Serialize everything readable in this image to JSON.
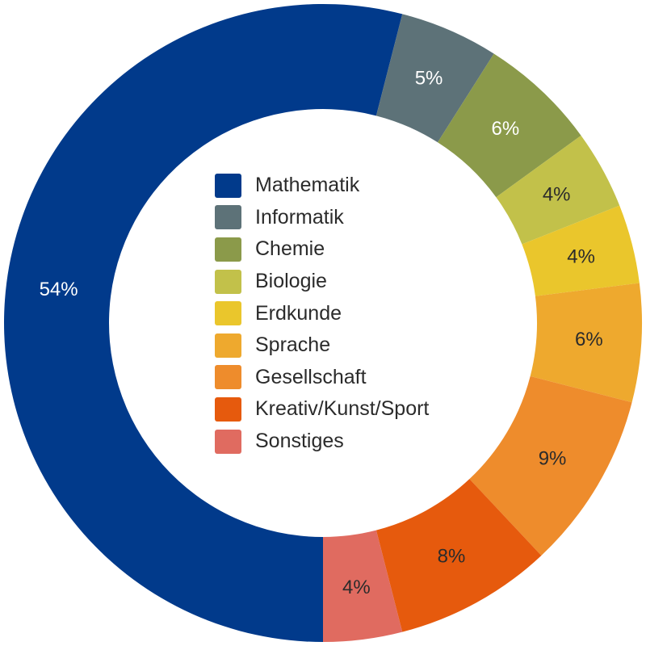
{
  "chart_data": {
    "type": "pie",
    "variant": "donut",
    "title": "",
    "legend_position": "center",
    "categories": [
      "Mathematik",
      "Informatik",
      "Chemie",
      "Biologie",
      "Erdkunde",
      "Sprache",
      "Gesellschaft",
      "Kreativ/Kunst/Sport",
      "Sonstiges"
    ],
    "values": [
      54,
      5,
      6,
      4,
      4,
      6,
      9,
      8,
      4
    ],
    "labels": [
      "54%",
      "5%",
      "6%",
      "4%",
      "4%",
      "6%",
      "9%",
      "8%",
      "4%"
    ],
    "colors": [
      "#013a8b",
      "#5d7278",
      "#8b9a4a",
      "#c2c14a",
      "#eac62c",
      "#eea92e",
      "#ee8c2c",
      "#e65a0d",
      "#e06b60"
    ],
    "label_colors": [
      "#ffffff",
      "#ffffff",
      "#ffffff",
      "#2b2b2b",
      "#2b2b2b",
      "#2b2b2b",
      "#2b2b2b",
      "#2b2b2b",
      "#2b2b2b"
    ]
  }
}
